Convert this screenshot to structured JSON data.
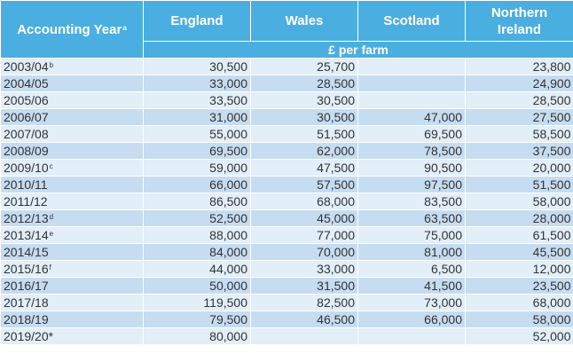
{
  "table": {
    "headers": {
      "year": "Accounting Year",
      "year_note": "a",
      "england": "England",
      "wales": "Wales",
      "scotland": "Scotland",
      "ni_line1": "Northern",
      "ni_line2": "Ireland",
      "unit": "£ per farm"
    },
    "rows": [
      {
        "year": "2003/04",
        "note": "b",
        "england": "30,500",
        "wales": "25,700",
        "scotland": "",
        "ni": "23,800"
      },
      {
        "year": "2004/05",
        "note": "",
        "england": "33,000",
        "wales": "28,500",
        "scotland": "",
        "ni": "24,900"
      },
      {
        "year": "2005/06",
        "note": "",
        "england": "33,500",
        "wales": "30,500",
        "scotland": "",
        "ni": "28,500"
      },
      {
        "year": "2006/07",
        "note": "",
        "england": "31,000",
        "wales": "30,500",
        "scotland": "47,000",
        "ni": "27,500"
      },
      {
        "year": "2007/08",
        "note": "",
        "england": "55,000",
        "wales": "51,500",
        "scotland": "69,500",
        "ni": "58,500"
      },
      {
        "year": "2008/09",
        "note": "",
        "england": "69,500",
        "wales": "62,000",
        "scotland": "78,500",
        "ni": "37,500"
      },
      {
        "year": "2009/10",
        "note": "c",
        "england": "59,000",
        "wales": "47,500",
        "scotland": "90,500",
        "ni": "20,000"
      },
      {
        "year": "2010/11",
        "note": "",
        "england": "66,000",
        "wales": "57,500",
        "scotland": "97,500",
        "ni": "51,500"
      },
      {
        "year": "2011/12",
        "note": "",
        "england": "86,500",
        "wales": "68,000",
        "scotland": "83,500",
        "ni": "58,000"
      },
      {
        "year": "2012/13",
        "note": "d",
        "england": "52,500",
        "wales": "45,000",
        "scotland": "63,500",
        "ni": "28,000"
      },
      {
        "year": "2013/14",
        "note": "e",
        "england": "88,000",
        "wales": "77,000",
        "scotland": "75,000",
        "ni": "61,500"
      },
      {
        "year": "2014/15",
        "note": "",
        "england": "84,000",
        "wales": "70,000",
        "scotland": "81,000",
        "ni": "45,500"
      },
      {
        "year": "2015/16",
        "note": "f",
        "england": "44,000",
        "wales": "33,000",
        "scotland": "6,500",
        "ni": "12,000"
      },
      {
        "year": "2016/17",
        "note": "",
        "england": "50,000",
        "wales": "31,500",
        "scotland": "41,500",
        "ni": "23,500"
      },
      {
        "year": "2017/18",
        "note": "",
        "england": "119,500",
        "wales": "82,500",
        "scotland": "73,000",
        "ni": "68,000"
      },
      {
        "year": "2018/19",
        "note": "",
        "england": "79,500",
        "wales": "46,500",
        "scotland": "66,000",
        "ni": "58,000"
      },
      {
        "year": "2019/20*",
        "note": "",
        "england": "80,000",
        "wales": "",
        "scotland": "",
        "ni": "52,000"
      }
    ]
  }
}
